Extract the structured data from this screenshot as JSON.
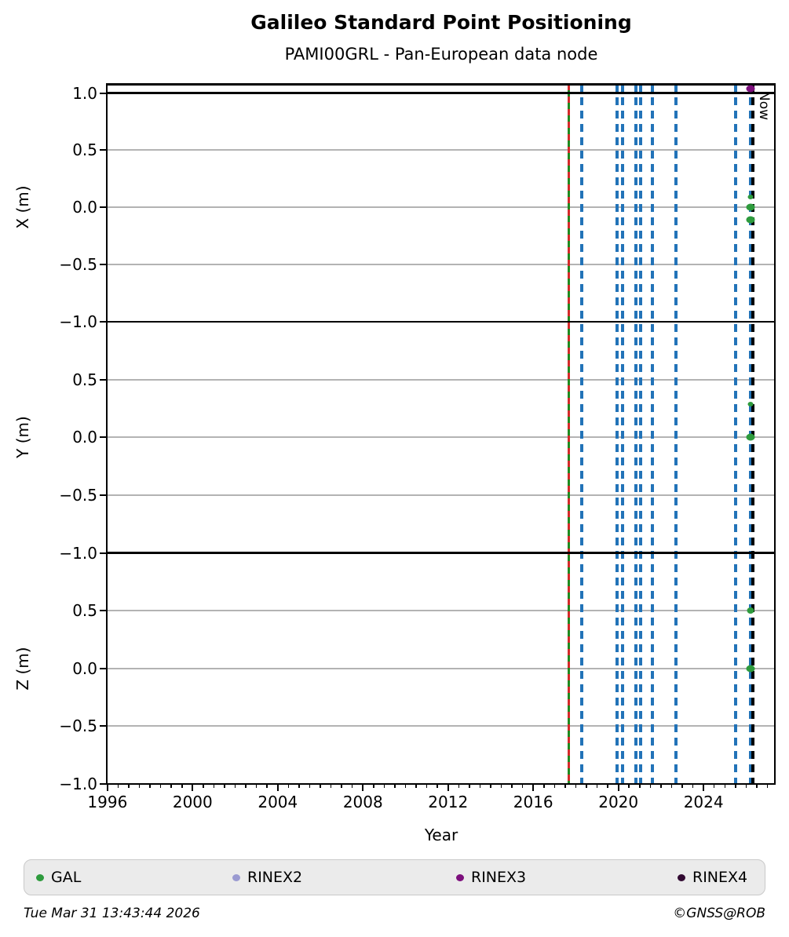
{
  "title": "Galileo Standard Point Positioning",
  "subtitle": "PAMI00GRL - Pan-European data node",
  "footer": {
    "timestamp": "Tue Mar 31 13:43:44 2026",
    "credit": "©GNSS@ROB"
  },
  "legend": [
    {
      "label": "GAL",
      "color": "#2e9b3d"
    },
    {
      "label": "RINEX2",
      "color": "#9a9ad1"
    },
    {
      "label": "RINEX3",
      "color": "#7d0f7d"
    },
    {
      "label": "RINEX4",
      "color": "#320a32"
    }
  ],
  "chart_data": {
    "type": "scatter",
    "title": "Galileo Standard Point Positioning",
    "subtitle": "PAMI00GRL - Pan-European data node",
    "xlabel": "Year",
    "xlim": [
      1995.95,
      2027.35
    ],
    "x_ticks_major": [
      {
        "v": 1996,
        "label": "1996"
      },
      {
        "v": 2000,
        "label": "2000"
      },
      {
        "v": 2004,
        "label": "2004"
      },
      {
        "v": 2008,
        "label": "2008"
      },
      {
        "v": 2012,
        "label": "2012"
      },
      {
        "v": 2016,
        "label": "2016"
      },
      {
        "v": 2020,
        "label": "2020"
      },
      {
        "v": 2024,
        "label": "2024"
      }
    ],
    "x_minor_step": 0.5,
    "gridline_values": [
      0.5,
      0.0,
      -0.5
    ],
    "subplots": [
      {
        "ylabel": "X (m)",
        "ylim": [
          -1.0,
          1.0
        ],
        "threshold": 1.0,
        "yticks": [
          {
            "v": 1.0,
            "label": "1.0"
          },
          {
            "v": 0.5,
            "label": "0.5"
          },
          {
            "v": 0.0,
            "label": "0.0"
          },
          {
            "v": -0.5,
            "label": "−0.5"
          },
          {
            "v": -1.0,
            "label": "−1.0"
          }
        ],
        "points": [
          {
            "series": "GAL",
            "x": 2026.22,
            "y": 0.09,
            "size": "small"
          },
          {
            "series": "GAL",
            "x": 2026.22,
            "y": 0.0,
            "size": "large"
          },
          {
            "series": "GAL",
            "x": 2026.22,
            "y": -0.11,
            "size": "large"
          },
          {
            "series": "RINEX3",
            "x": 2026.2,
            "y": 1.04,
            "size": "large",
            "clipped": true
          }
        ]
      },
      {
        "ylabel": "Y (m)",
        "ylim": [
          -1.0,
          1.0
        ],
        "yticks": [
          {
            "v": 0.5,
            "label": "0.5"
          },
          {
            "v": 0.0,
            "label": "0.0"
          },
          {
            "v": -0.5,
            "label": "−0.5"
          },
          {
            "v": -1.0,
            "label": "−1.0"
          }
        ],
        "points": [
          {
            "series": "GAL",
            "x": 2026.22,
            "y": 0.29,
            "size": "small"
          },
          {
            "series": "GAL",
            "x": 2026.22,
            "y": 0.0,
            "size": "large"
          }
        ]
      },
      {
        "ylabel": "Z (m)",
        "ylim": [
          -1.0,
          1.0
        ],
        "yticks": [
          {
            "v": 0.5,
            "label": "0.5"
          },
          {
            "v": 0.0,
            "label": "0.0"
          },
          {
            "v": -0.5,
            "label": "−0.5"
          },
          {
            "v": -1.0,
            "label": "−1.0"
          }
        ],
        "points": [
          {
            "series": "GAL",
            "x": 2026.22,
            "y": 0.5,
            "size": "medium"
          },
          {
            "series": "GAL",
            "x": 2026.22,
            "y": 0.0,
            "size": "large"
          }
        ]
      }
    ],
    "vlines": {
      "gal_start": {
        "x": 2017.68,
        "style": "green-solid-red-dashed"
      },
      "blue_dashed": [
        2018.29,
        2019.94,
        2020.18,
        2020.83,
        2021.06,
        2021.6,
        2022.72,
        2025.49,
        2026.22
      ],
      "now": {
        "x": 2026.32,
        "label": "Now"
      }
    },
    "colors": {
      "blue_event_line": "#2273b8",
      "gal_start_green": "#1f8a1f",
      "gal_start_red": "#d42a2a",
      "now_line": "#000000",
      "gridline": "#b3b3b3"
    },
    "legend_position": "bottom",
    "grid": true
  }
}
